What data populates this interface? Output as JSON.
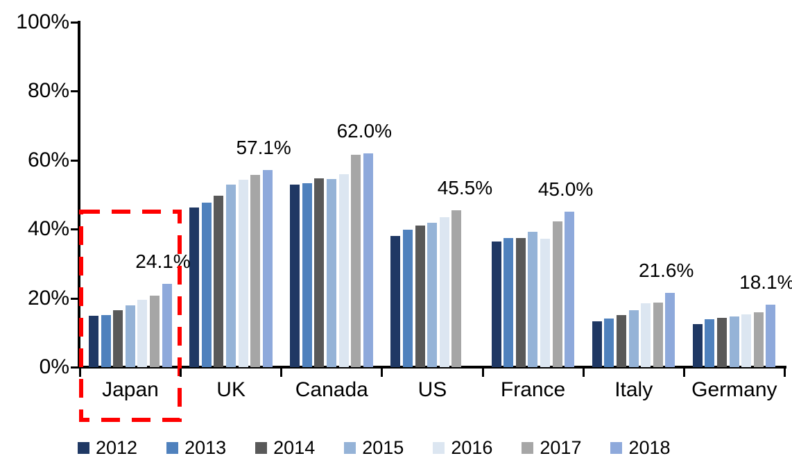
{
  "chart_data": {
    "type": "bar",
    "title": "",
    "xlabel": "",
    "ylabel": "",
    "grid": false,
    "legend_position": "bottom",
    "y_axis": {
      "min": 0,
      "max": 100,
      "tick_step": 20,
      "ticks": [
        "100%",
        "80%",
        "60%",
        "40%",
        "20%",
        "0%"
      ]
    },
    "categories": [
      "Japan",
      "UK",
      "Canada",
      "US",
      "France",
      "Italy",
      "Germany"
    ],
    "series": [
      {
        "name": "2012",
        "color": "#1F3864",
        "values": [
          14.8,
          46.2,
          53.0,
          38.0,
          36.5,
          13.3,
          12.5
        ]
      },
      {
        "name": "2013",
        "color": "#4F81BD",
        "values": [
          15.0,
          47.7,
          53.4,
          39.8,
          37.5,
          14.0,
          13.8
        ]
      },
      {
        "name": "2014",
        "color": "#595959",
        "values": [
          16.5,
          49.8,
          54.8,
          41.0,
          37.5,
          15.0,
          14.2
        ]
      },
      {
        "name": "2015",
        "color": "#95B3D7",
        "values": [
          18.0,
          53.0,
          54.5,
          41.8,
          39.2,
          16.6,
          14.7
        ]
      },
      {
        "name": "2016",
        "color": "#DCE6F1",
        "values": [
          19.6,
          54.4,
          56.0,
          43.4,
          37.3,
          18.6,
          15.3
        ]
      },
      {
        "name": "2017",
        "color": "#A6A6A6",
        "values": [
          20.8,
          55.7,
          61.5,
          45.5,
          42.3,
          18.8,
          15.8
        ]
      },
      {
        "name": "2018",
        "color": "#8EA9DB",
        "values": [
          24.1,
          57.1,
          62.0,
          null,
          45.0,
          21.6,
          18.1
        ]
      }
    ],
    "annotations": [
      {
        "category": "Japan",
        "text": "24.1%"
      },
      {
        "category": "UK",
        "text": "57.1%"
      },
      {
        "category": "Canada",
        "text": "62.0%"
      },
      {
        "category": "US",
        "text": "45.5%"
      },
      {
        "category": "France",
        "text": "45.0%"
      },
      {
        "category": "Italy",
        "text": "21.6%"
      },
      {
        "category": "Germany",
        "text": "18.1%"
      }
    ],
    "highlight": {
      "category": "Japan",
      "shape": "dashed-rectangle",
      "color": "#FF0000"
    }
  }
}
